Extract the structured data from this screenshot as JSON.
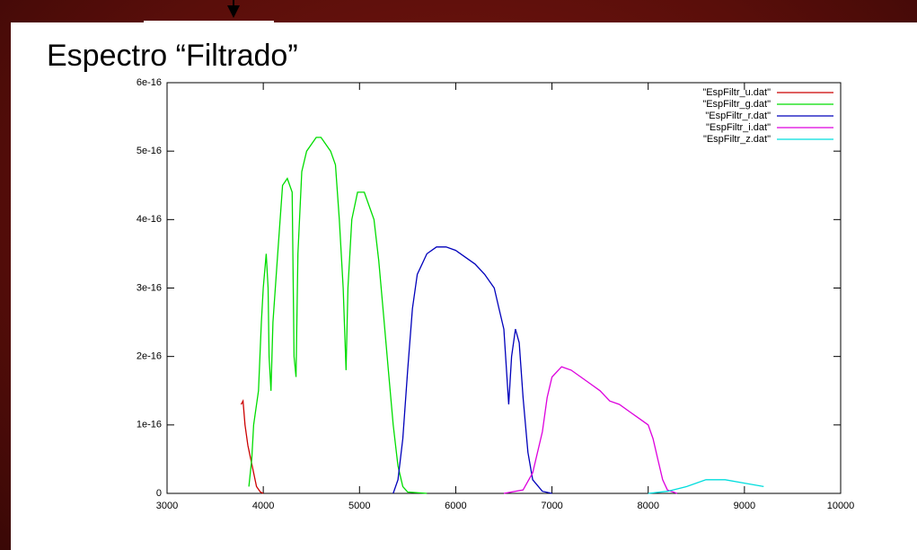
{
  "chart_data": {
    "type": "line",
    "title": "Espectro “Filtrado”",
    "xlim": [
      3000,
      10000
    ],
    "xticks": [
      3000,
      4000,
      5000,
      6000,
      7000,
      8000,
      9000,
      10000
    ],
    "ylim": [
      0,
      6e-16
    ],
    "yticks": [
      0,
      1e-16,
      2e-16,
      3e-16,
      4e-16,
      5e-16,
      6e-16
    ],
    "legend": "top-right",
    "series": [
      {
        "name": "\"EspFiltr_u.dat\"",
        "color": "#cc0000",
        "x": [
          3770,
          3790,
          3810,
          3840,
          3870,
          3900,
          3930,
          3970,
          4000
        ],
        "values": [
          1.3e-16,
          1.35e-16,
          1e-16,
          7e-17,
          5e-17,
          3e-17,
          1e-17,
          2e-18,
          0
        ]
      },
      {
        "name": "\"EspFiltr_g.dat\"",
        "color": "#00dd00",
        "x": [
          3850,
          3880,
          3900,
          3950,
          3980,
          4000,
          4030,
          4050,
          4060,
          4080,
          4100,
          4150,
          4200,
          4250,
          4300,
          4320,
          4340,
          4360,
          4400,
          4450,
          4500,
          4550,
          4600,
          4650,
          4700,
          4750,
          4790,
          4830,
          4860,
          4880,
          4920,
          4980,
          5050,
          5100,
          5150,
          5200,
          5250,
          5300,
          5350,
          5400,
          5450,
          5500,
          5700
        ],
        "values": [
          1e-17,
          5e-17,
          1e-16,
          1.5e-16,
          2.5e-16,
          3e-16,
          3.5e-16,
          3e-16,
          2e-16,
          1.5e-16,
          2.5e-16,
          3.5e-16,
          4.5e-16,
          4.6e-16,
          4.4e-16,
          2e-16,
          1.7e-16,
          3.5e-16,
          4.7e-16,
          5e-16,
          5.1e-16,
          5.2e-16,
          5.2e-16,
          5.1e-16,
          5e-16,
          4.8e-16,
          4e-16,
          3e-16,
          1.8e-16,
          3e-16,
          4e-16,
          4.4e-16,
          4.4e-16,
          4.2e-16,
          4e-16,
          3.4e-16,
          2.6e-16,
          1.8e-16,
          1e-16,
          4e-17,
          1e-17,
          2e-18,
          0
        ]
      },
      {
        "name": "\"EspFiltr_r.dat\"",
        "color": "#0000bb",
        "x": [
          5350,
          5400,
          5450,
          5500,
          5550,
          5600,
          5700,
          5800,
          5900,
          6000,
          6100,
          6200,
          6300,
          6400,
          6450,
          6500,
          6550,
          6580,
          6620,
          6660,
          6700,
          6750,
          6800,
          6900,
          7000
        ],
        "values": [
          0,
          2e-17,
          8e-17,
          1.8e-16,
          2.7e-16,
          3.2e-16,
          3.5e-16,
          3.6e-16,
          3.6e-16,
          3.55e-16,
          3.45e-16,
          3.35e-16,
          3.2e-16,
          3e-16,
          2.7e-16,
          2.4e-16,
          1.3e-16,
          2e-16,
          2.4e-16,
          2.2e-16,
          1.4e-16,
          6e-17,
          2e-17,
          3e-18,
          0
        ]
      },
      {
        "name": "\"EspFiltr_i.dat\"",
        "color": "#dd00dd",
        "x": [
          6500,
          6700,
          6800,
          6900,
          6950,
          7000,
          7100,
          7200,
          7300,
          7400,
          7500,
          7600,
          7700,
          7800,
          7900,
          8000,
          8050,
          8100,
          8150,
          8200,
          8300
        ],
        "values": [
          0,
          5e-18,
          3e-17,
          9e-17,
          1.4e-16,
          1.7e-16,
          1.85e-16,
          1.8e-16,
          1.7e-16,
          1.6e-16,
          1.5e-16,
          1.35e-16,
          1.3e-16,
          1.2e-16,
          1.1e-16,
          1e-16,
          8e-17,
          5e-17,
          2e-17,
          5e-18,
          0
        ]
      },
      {
        "name": "\"EspFiltr_z.dat\"",
        "color": "#00dddd",
        "x": [
          8000,
          8200,
          8400,
          8600,
          8800,
          9000,
          9200
        ],
        "values": [
          0,
          3e-18,
          1e-17,
          2e-17,
          2e-17,
          1.5e-17,
          1e-17
        ]
      }
    ]
  }
}
